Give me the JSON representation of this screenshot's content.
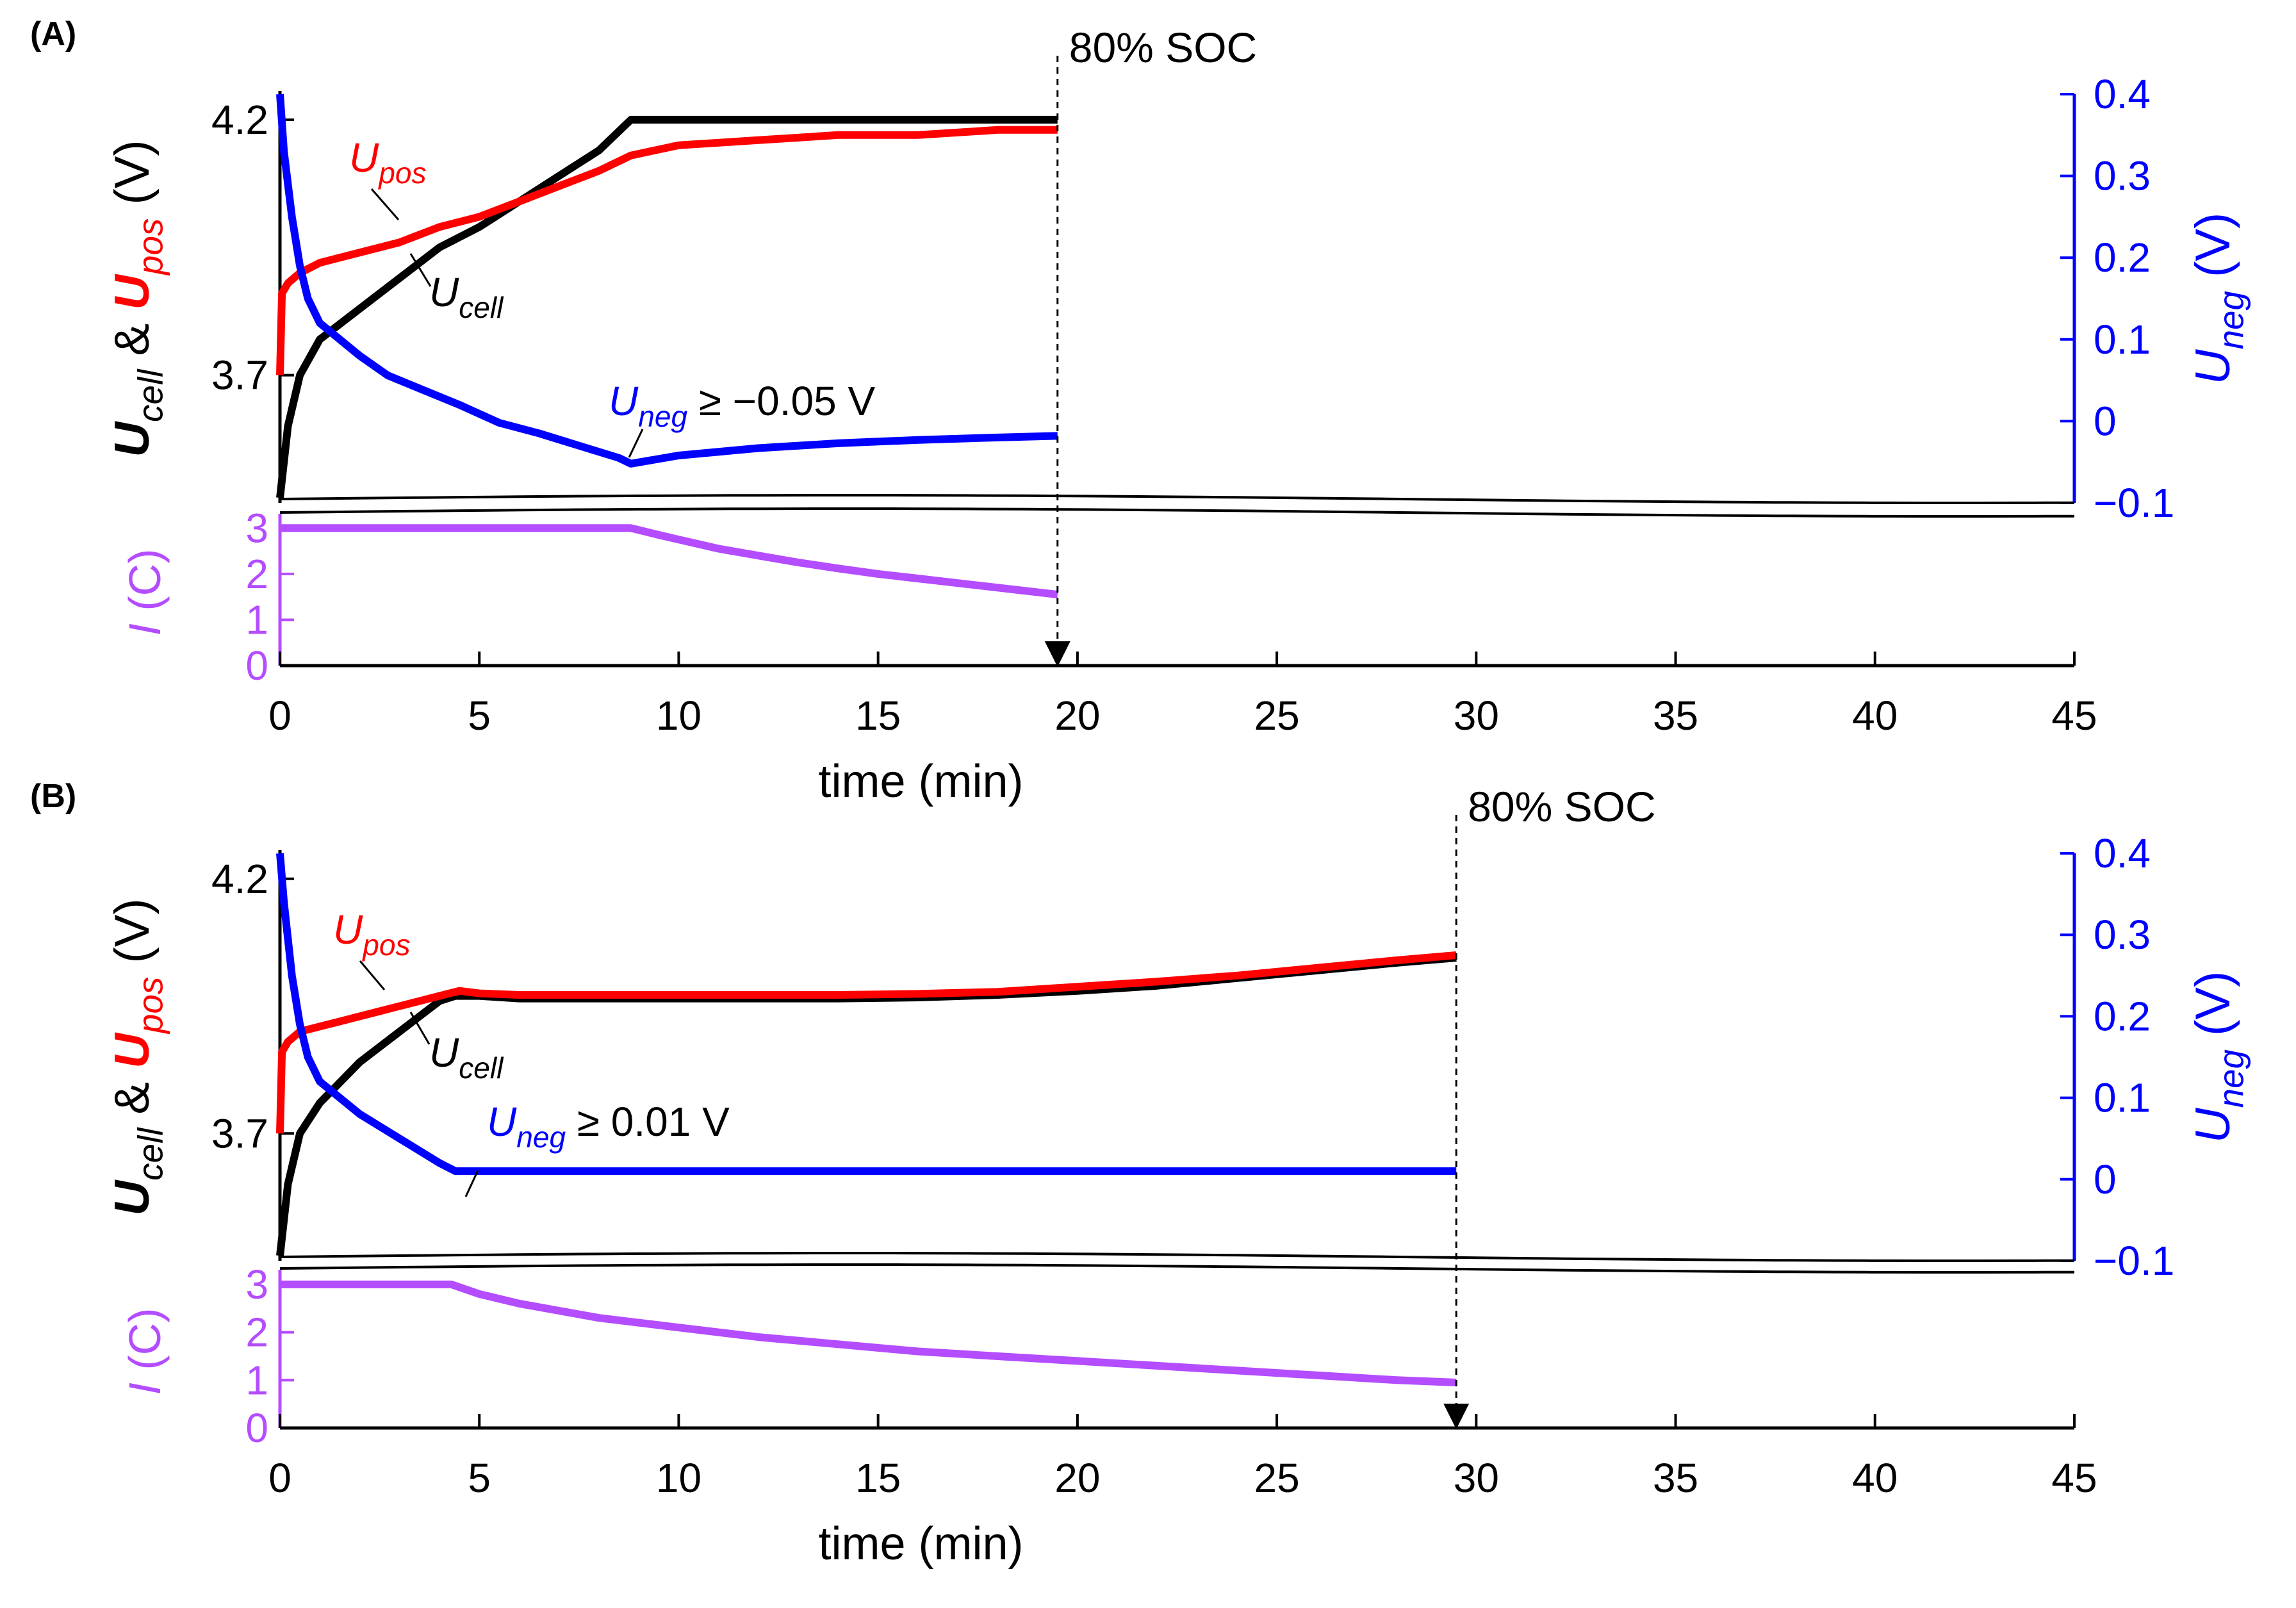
{
  "colors": {
    "cell": "#000000",
    "pos": "#ff0000",
    "neg": "#0000ff",
    "current": "#b44cff"
  },
  "chart_data": [
    {
      "panel_label": "(A)",
      "type": "line",
      "xlabel": "time (min)",
      "xlim": [
        0,
        45
      ],
      "xticks": [
        0,
        5,
        10,
        15,
        20,
        25,
        30,
        35,
        40,
        45
      ],
      "voltage_axis": {
        "ylim": [
          3.45,
          4.25
        ],
        "ticks": [
          3.7,
          4.2
        ],
        "label_parts": [
          "U",
          "cell",
          " & ",
          "U",
          "pos",
          " (V)"
        ]
      },
      "neg_axis": {
        "ylim": [
          -0.1,
          0.4
        ],
        "ticks": [
          -0.1,
          0,
          0.1,
          0.2,
          0.3,
          0.4
        ],
        "label_parts": [
          "U",
          "neg",
          " (V)"
        ]
      },
      "current_axis": {
        "ylim": [
          0,
          3.2
        ],
        "ticks": [
          0,
          1,
          2,
          3
        ],
        "label_parts": [
          "I",
          " (C)"
        ]
      },
      "end_marker": {
        "x": 19.5,
        "label": "80% SOC"
      },
      "series": [
        {
          "name": "Ucell",
          "axis": "voltage",
          "x": [
            0,
            0.2,
            0.5,
            1,
            2,
            3,
            4,
            5,
            6,
            7,
            8,
            8.8,
            10,
            12,
            14,
            16,
            18,
            19.5
          ],
          "y": [
            3.46,
            3.6,
            3.7,
            3.77,
            3.83,
            3.89,
            3.95,
            3.99,
            4.04,
            4.09,
            4.14,
            4.2,
            4.2,
            4.2,
            4.2,
            4.2,
            4.2,
            4.2
          ]
        },
        {
          "name": "Upos",
          "axis": "voltage",
          "x": [
            0,
            0.05,
            0.2,
            0.5,
            1,
            2,
            3,
            4,
            5,
            6,
            7,
            8,
            8.8,
            10,
            12,
            14,
            16,
            18,
            19.5
          ],
          "y": [
            3.7,
            3.86,
            3.88,
            3.9,
            3.92,
            3.94,
            3.96,
            3.99,
            4.01,
            4.04,
            4.07,
            4.1,
            4.13,
            4.15,
            4.16,
            4.17,
            4.17,
            4.18,
            4.18
          ]
        },
        {
          "name": "Uneg",
          "axis": "neg",
          "x": [
            0,
            0.1,
            0.3,
            0.5,
            0.7,
            1,
            1.5,
            2,
            2.7,
            3.5,
            4.5,
            5.5,
            6.5,
            7.5,
            8.5,
            8.8,
            10,
            12,
            14,
            16,
            18,
            19.5
          ],
          "y": [
            0.4,
            0.33,
            0.25,
            0.19,
            0.15,
            0.12,
            0.1,
            0.08,
            0.056,
            0.04,
            0.02,
            -0.002,
            -0.015,
            -0.03,
            -0.045,
            -0.052,
            -0.042,
            -0.033,
            -0.027,
            -0.023,
            -0.02,
            -0.018
          ]
        },
        {
          "name": "I",
          "axis": "current",
          "x": [
            0,
            8.8,
            9.5,
            10,
            11,
            12,
            13,
            14,
            15,
            16,
            17,
            18,
            19.5
          ],
          "y": [
            3,
            3,
            2.85,
            2.75,
            2.55,
            2.4,
            2.25,
            2.12,
            2.0,
            1.9,
            1.8,
            1.7,
            1.55
          ]
        }
      ],
      "annotations": {
        "upos": {
          "parts": [
            "U",
            "pos",
            ""
          ]
        },
        "ucell": {
          "parts": [
            "U",
            "cell",
            ""
          ]
        },
        "uneg": {
          "parts": [
            "U",
            "neg",
            " ≥ −0.05 V"
          ]
        }
      }
    },
    {
      "panel_label": "(B)",
      "type": "line",
      "xlabel": "time (min)",
      "xlim": [
        0,
        45
      ],
      "xticks": [
        0,
        5,
        10,
        15,
        20,
        25,
        30,
        35,
        40,
        45
      ],
      "voltage_axis": {
        "ylim": [
          3.45,
          4.25
        ],
        "ticks": [
          3.7,
          4.2
        ],
        "label_parts": [
          "U",
          "cell",
          " & ",
          "U",
          "pos",
          " (V)"
        ]
      },
      "neg_axis": {
        "ylim": [
          -0.1,
          0.4
        ],
        "ticks": [
          -0.1,
          0,
          0.1,
          0.2,
          0.3,
          0.4
        ],
        "label_parts": [
          "U",
          "neg",
          " (V)"
        ]
      },
      "current_axis": {
        "ylim": [
          0,
          3.2
        ],
        "ticks": [
          0,
          1,
          2,
          3
        ],
        "label_parts": [
          "I",
          " (C)"
        ]
      },
      "end_marker": {
        "x": 29.5,
        "label": "80% SOC"
      },
      "series": [
        {
          "name": "Ucell",
          "axis": "voltage",
          "x": [
            0,
            0.2,
            0.5,
            1,
            1.5,
            2,
            2.5,
            3,
            3.5,
            4,
            4.4,
            5,
            6,
            8,
            10,
            12,
            14,
            16,
            18,
            20,
            22,
            24,
            26,
            28,
            29.5
          ],
          "y": [
            3.46,
            3.6,
            3.7,
            3.76,
            3.8,
            3.84,
            3.87,
            3.9,
            3.93,
            3.96,
            3.97,
            3.97,
            3.965,
            3.965,
            3.965,
            3.965,
            3.965,
            3.967,
            3.972,
            3.98,
            3.99,
            4.005,
            4.02,
            4.035,
            4.045
          ]
        },
        {
          "name": "Upos",
          "axis": "voltage",
          "x": [
            0,
            0.05,
            0.2,
            0.5,
            1,
            1.5,
            2,
            2.5,
            3,
            3.5,
            4,
            4.5,
            5,
            6,
            8,
            10,
            12,
            14,
            16,
            18,
            20,
            22,
            24,
            26,
            28,
            29.5
          ],
          "y": [
            3.7,
            3.86,
            3.88,
            3.9,
            3.91,
            3.92,
            3.93,
            3.94,
            3.95,
            3.96,
            3.97,
            3.98,
            3.975,
            3.972,
            3.972,
            3.972,
            3.972,
            3.972,
            3.974,
            3.978,
            3.988,
            3.998,
            4.01,
            4.025,
            4.04,
            4.05
          ]
        },
        {
          "name": "Uneg",
          "axis": "neg",
          "x": [
            0,
            0.1,
            0.3,
            0.5,
            0.7,
            1,
            1.5,
            2,
            3,
            4,
            4.4,
            10,
            15,
            20,
            25,
            29.5
          ],
          "y": [
            0.4,
            0.34,
            0.25,
            0.19,
            0.15,
            0.12,
            0.1,
            0.08,
            0.05,
            0.02,
            0.01,
            0.01,
            0.01,
            0.01,
            0.01,
            0.01
          ]
        },
        {
          "name": "I",
          "axis": "current",
          "x": [
            0,
            4.3,
            5,
            6,
            7,
            8,
            9,
            10,
            12,
            14,
            16,
            18,
            20,
            22,
            24,
            26,
            28,
            29.5
          ],
          "y": [
            3,
            3,
            2.8,
            2.6,
            2.45,
            2.3,
            2.2,
            2.1,
            1.9,
            1.75,
            1.6,
            1.5,
            1.4,
            1.3,
            1.2,
            1.1,
            1.0,
            0.95
          ]
        }
      ],
      "annotations": {
        "upos": {
          "parts": [
            "U",
            "pos",
            ""
          ]
        },
        "ucell": {
          "parts": [
            "U",
            "cell",
            ""
          ]
        },
        "uneg": {
          "parts": [
            "U",
            "neg",
            " ≥ 0.01 V"
          ]
        }
      }
    }
  ]
}
